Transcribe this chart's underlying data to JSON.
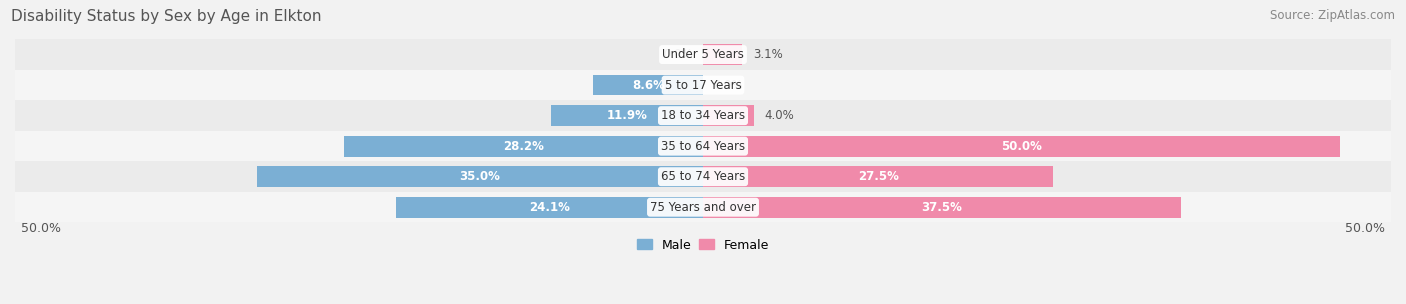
{
  "title": "Disability Status by Sex by Age in Elkton",
  "source": "Source: ZipAtlas.com",
  "categories": [
    "Under 5 Years",
    "5 to 17 Years",
    "18 to 34 Years",
    "35 to 64 Years",
    "65 to 74 Years",
    "75 Years and over"
  ],
  "male_values": [
    0.0,
    8.6,
    11.9,
    28.2,
    35.0,
    24.1
  ],
  "female_values": [
    3.1,
    0.0,
    4.0,
    50.0,
    27.5,
    37.5
  ],
  "max_val": 50.0,
  "male_color": "#7bafd4",
  "female_color": "#f08aaa",
  "male_label": "Male",
  "female_label": "Female",
  "bg_color": "#f2f2f2",
  "bar_bg_color": "#e0e0e0",
  "row_bg_even": "#ebebeb",
  "row_bg_odd": "#f5f5f5",
  "title_color": "#555555",
  "source_color": "#888888",
  "label_color_inside": "#ffffff",
  "label_color_outside": "#555555",
  "axis_label_left": "50.0%",
  "axis_label_right": "50.0%",
  "title_fontsize": 11,
  "source_fontsize": 8.5,
  "bar_label_fontsize": 8.5,
  "category_fontsize": 8.5,
  "axis_fontsize": 9,
  "legend_fontsize": 9,
  "inside_threshold": 5.0
}
